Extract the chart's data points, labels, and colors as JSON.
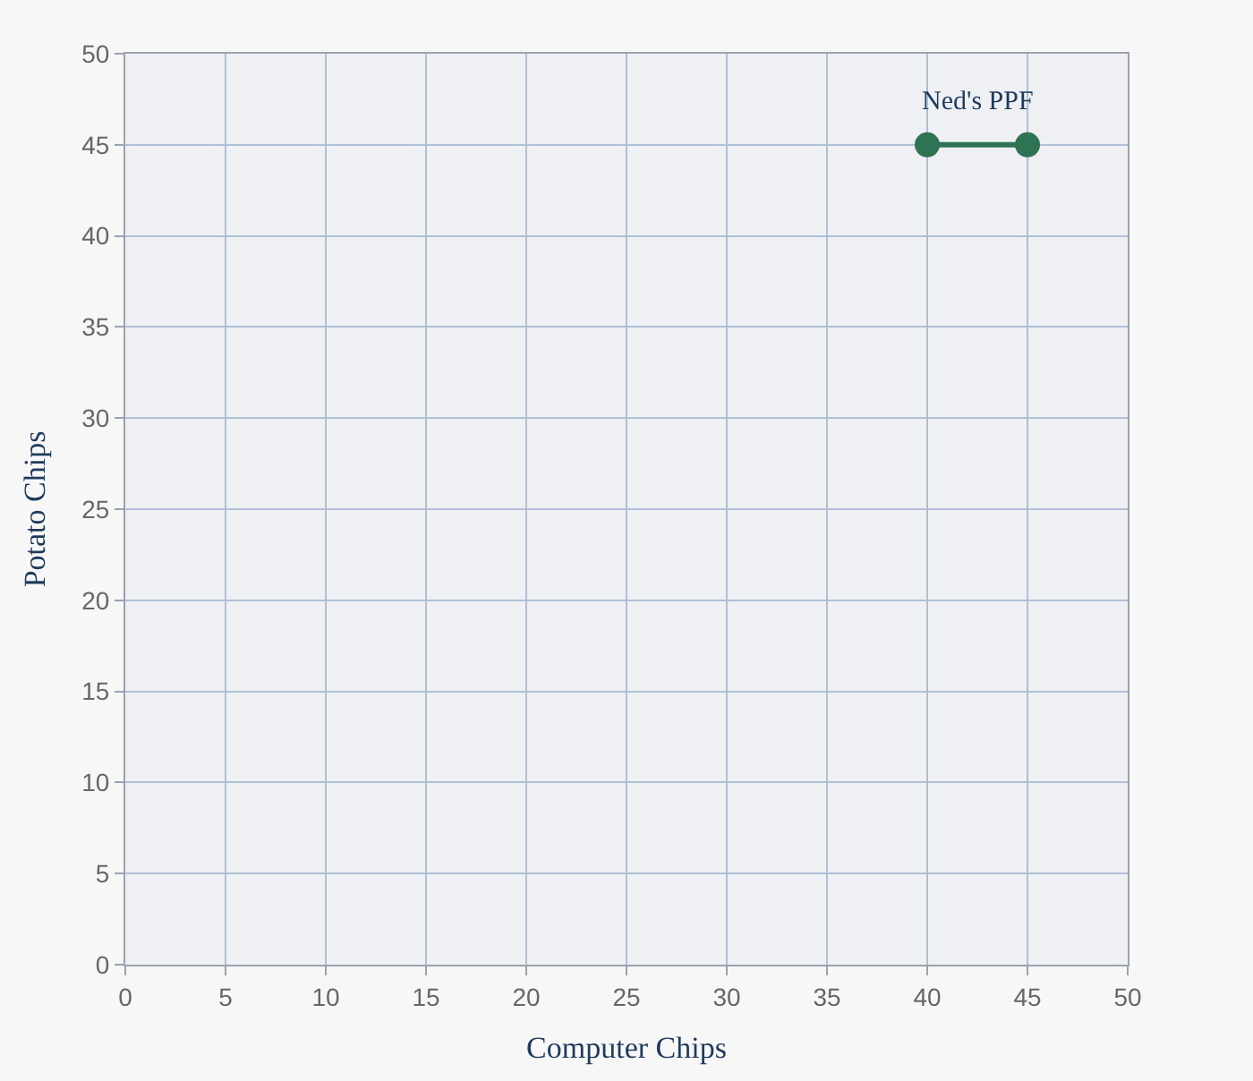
{
  "chart_data": {
    "type": "line",
    "xlabel": "Computer Chips",
    "ylabel": "Potato Chips",
    "series": [
      {
        "name": "Ned's PPF",
        "color": "#2f7355",
        "x": [
          40,
          45
        ],
        "values": [
          45,
          45
        ]
      }
    ],
    "xlim": [
      0,
      50
    ],
    "xticks": [
      0,
      5,
      10,
      15,
      20,
      25,
      30,
      35,
      40,
      45,
      50
    ],
    "ylim": [
      0,
      50
    ],
    "yticks": [
      0,
      5,
      10,
      15,
      20,
      25,
      30,
      35,
      40,
      45,
      50
    ],
    "grid": true,
    "legend": false,
    "marker": "circle",
    "line_style": "solid"
  }
}
